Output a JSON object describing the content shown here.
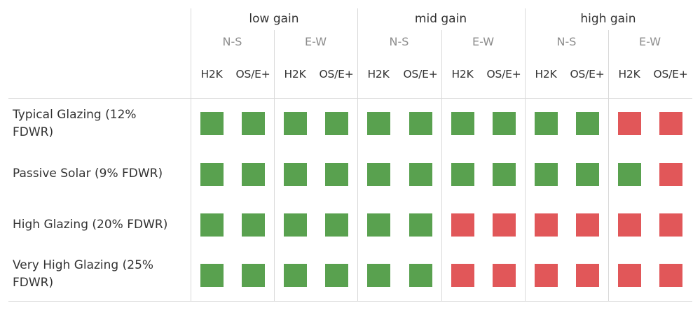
{
  "colors": {
    "pass": "#59a14f",
    "fail": "#e15759"
  },
  "header": {
    "gains": [
      "low gain",
      "mid gain",
      "high gain"
    ],
    "orientations": [
      "N-S",
      "E-W",
      "N-S",
      "E-W",
      "N-S",
      "E-W"
    ],
    "models": [
      "H2K",
      "OS/E+",
      "H2K",
      "OS/E+",
      "H2K",
      "OS/E+",
      "H2K",
      "OS/E+",
      "H2K",
      "OS/E+",
      "H2K",
      "OS/E+"
    ]
  },
  "chart_data": {
    "type": "heatmap",
    "title": "",
    "column_groups": [
      "low gain",
      "mid gain",
      "high gain"
    ],
    "column_subgroups": [
      "N-S",
      "E-W"
    ],
    "columns": [
      "H2K",
      "OS/E+"
    ],
    "rows": [
      {
        "label": "Typical Glazing (12% FDWR)",
        "values": [
          "pass",
          "pass",
          "pass",
          "pass",
          "pass",
          "pass",
          "pass",
          "pass",
          "pass",
          "pass",
          "fail",
          "fail"
        ]
      },
      {
        "label": "Passive Solar (9% FDWR)",
        "values": [
          "pass",
          "pass",
          "pass",
          "pass",
          "pass",
          "pass",
          "pass",
          "pass",
          "pass",
          "pass",
          "pass",
          "fail"
        ]
      },
      {
        "label": "High Glazing (20% FDWR)",
        "values": [
          "pass",
          "pass",
          "pass",
          "pass",
          "pass",
          "pass",
          "fail",
          "fail",
          "fail",
          "fail",
          "fail",
          "fail"
        ]
      },
      {
        "label": "Very High Glazing (25% FDWR)",
        "values": [
          "pass",
          "pass",
          "pass",
          "pass",
          "pass",
          "pass",
          "fail",
          "fail",
          "fail",
          "fail",
          "fail",
          "fail"
        ]
      }
    ]
  }
}
